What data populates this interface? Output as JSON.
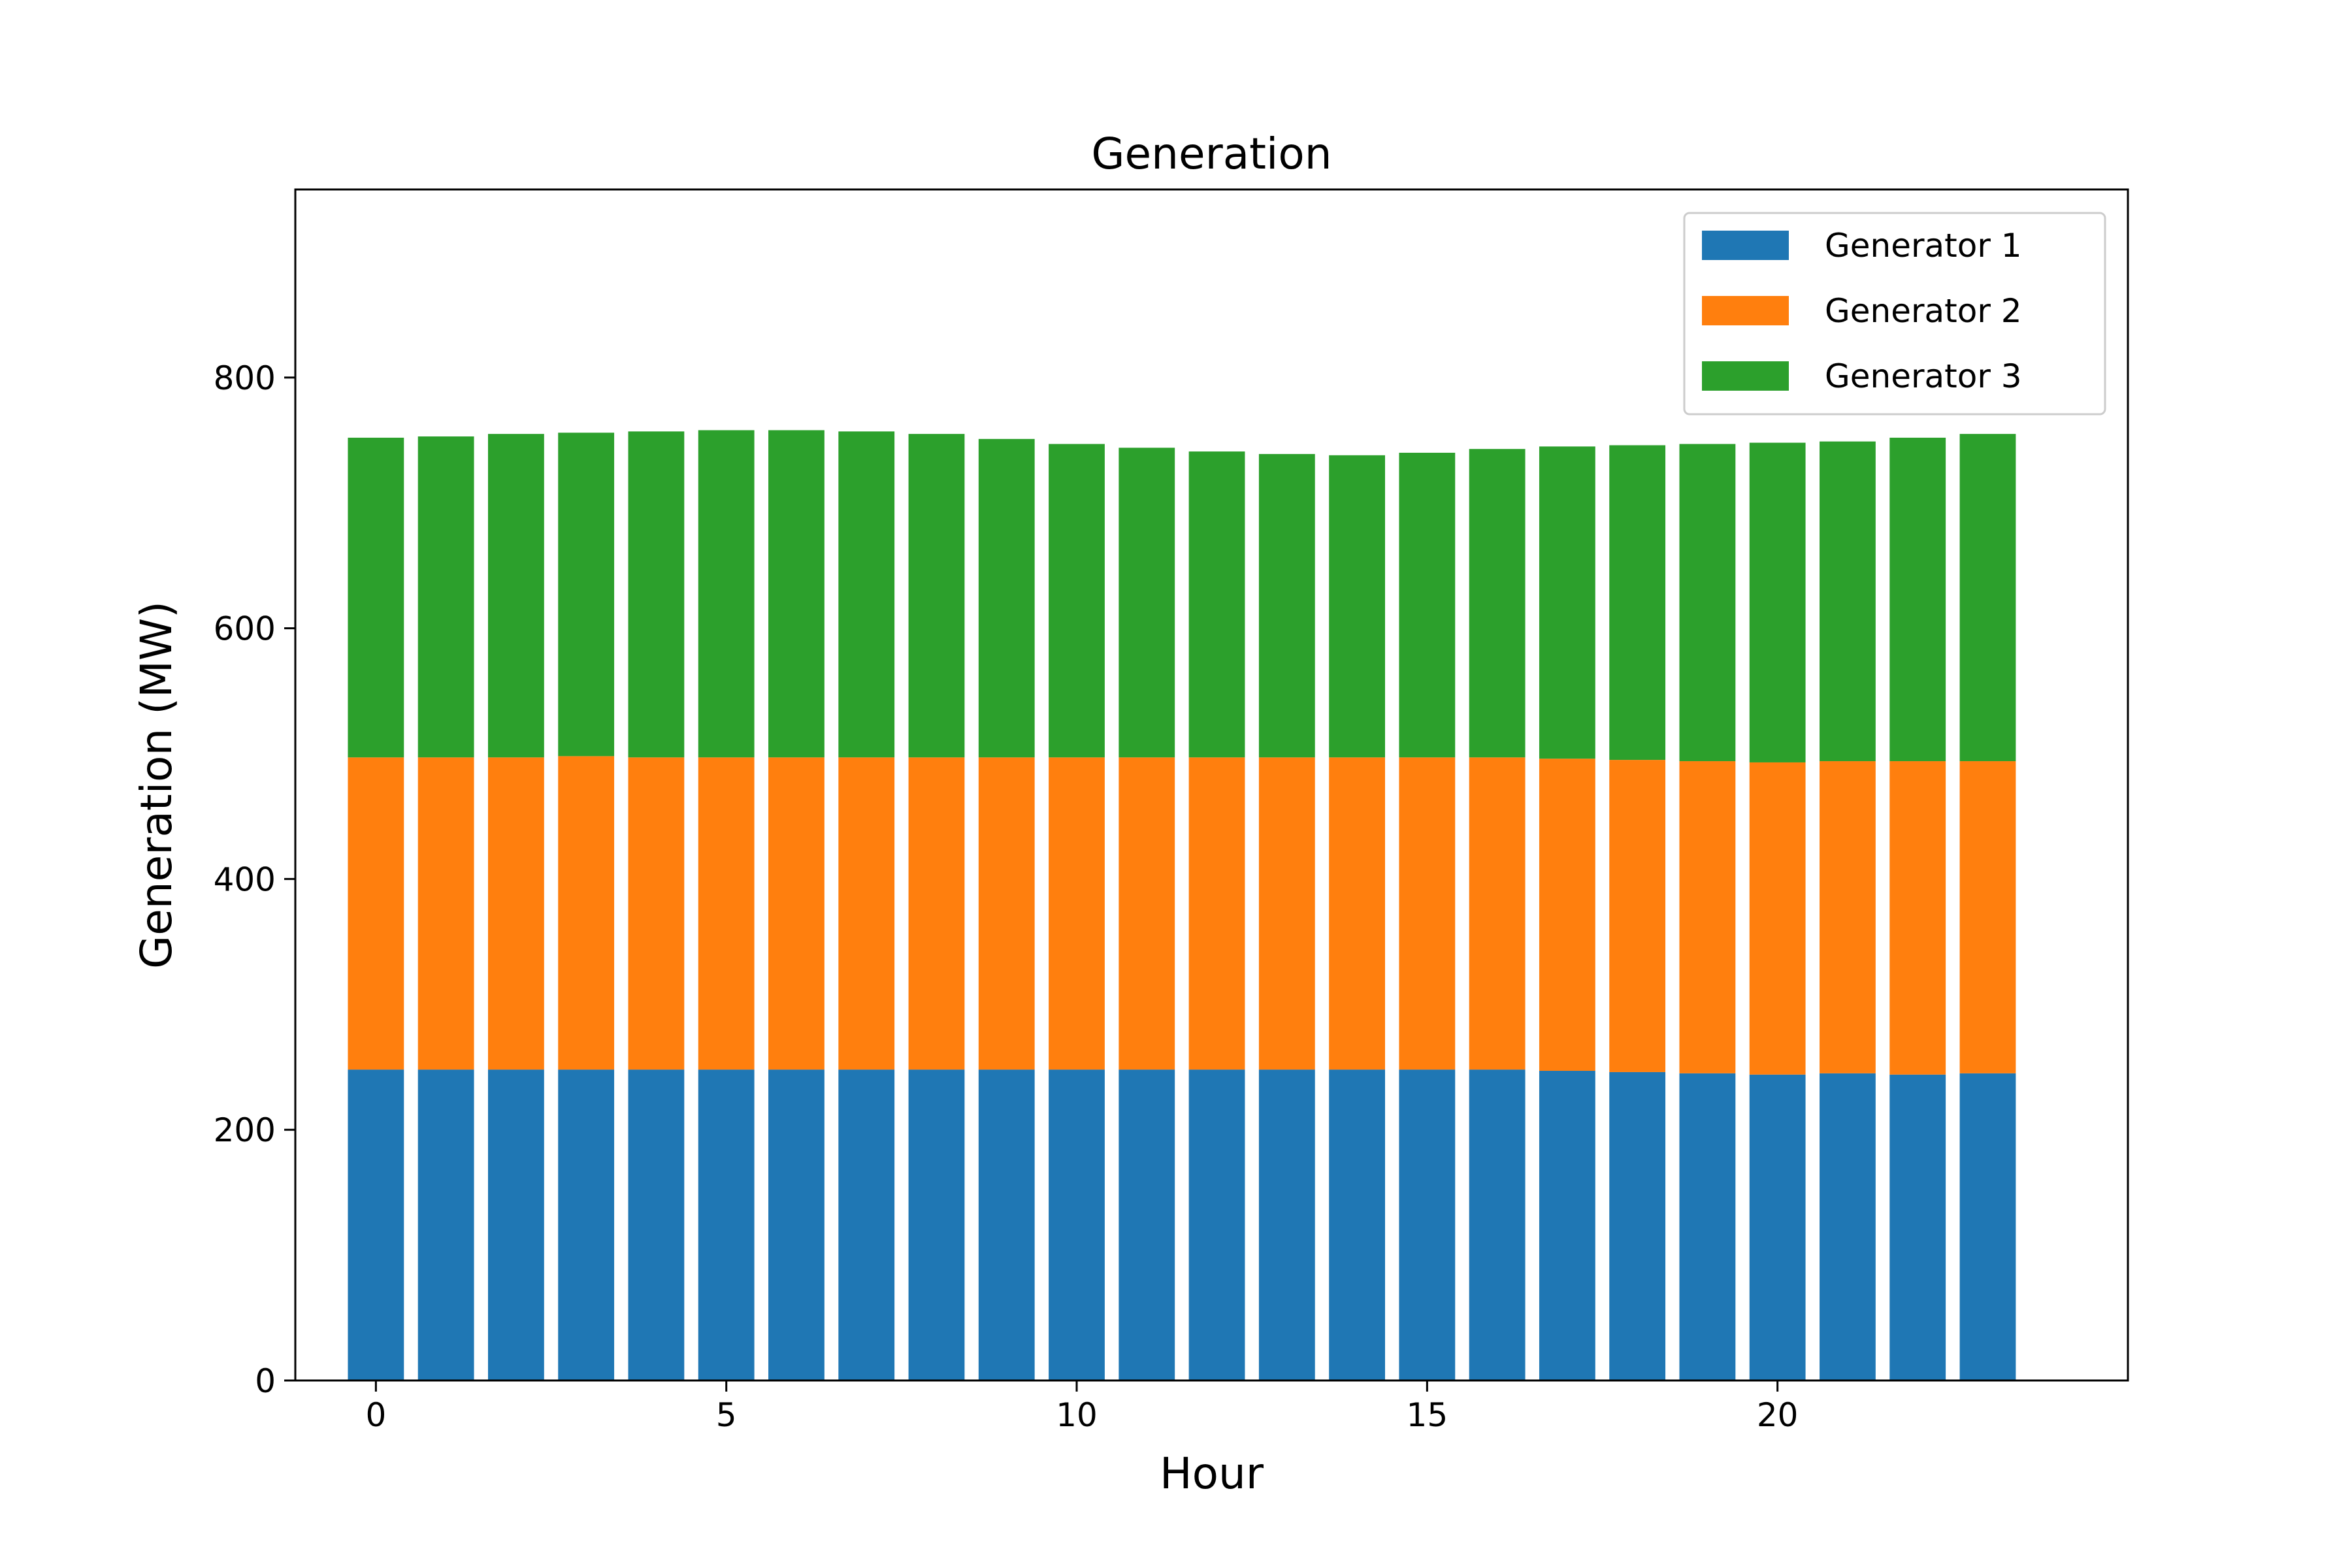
{
  "chart_data": {
    "type": "bar",
    "stacked": true,
    "title": "Generation",
    "xlabel": "Hour",
    "ylabel": "Generation (MW)",
    "xlim": [
      -1.15,
      25.0
    ],
    "ylim": [
      0,
      950
    ],
    "xticks": [
      0,
      5,
      10,
      15,
      20
    ],
    "yticks": [
      0,
      200,
      400,
      600,
      800
    ],
    "grid": false,
    "legend_position": "top-right",
    "x": [
      0,
      1,
      2,
      3,
      4,
      5,
      6,
      7,
      8,
      9,
      10,
      11,
      12,
      13,
      14,
      15,
      16,
      17,
      18,
      19,
      20,
      21,
      22,
      23
    ],
    "series": [
      {
        "name": "Generator 1",
        "color": "#1f77b4",
        "values": [
          248,
          248,
          248,
          248,
          248,
          248,
          248,
          248,
          248,
          248,
          248,
          248,
          248,
          248,
          248,
          248,
          248,
          247,
          246,
          245,
          244,
          245,
          244,
          245
        ]
      },
      {
        "name": "Generator 2",
        "color": "#ff7f0e",
        "values": [
          249,
          249,
          249,
          250,
          249,
          249,
          249,
          249,
          249,
          249,
          249,
          249,
          249,
          249,
          249,
          249,
          249,
          249,
          249,
          249,
          249,
          249,
          250,
          249
        ]
      },
      {
        "name": "Generator 3",
        "color": "#2ca02c",
        "values": [
          255,
          256,
          258,
          258,
          260,
          261,
          261,
          260,
          258,
          254,
          250,
          247,
          244,
          242,
          241,
          243,
          246,
          249,
          251,
          253,
          255,
          255,
          258,
          261
        ]
      }
    ]
  }
}
